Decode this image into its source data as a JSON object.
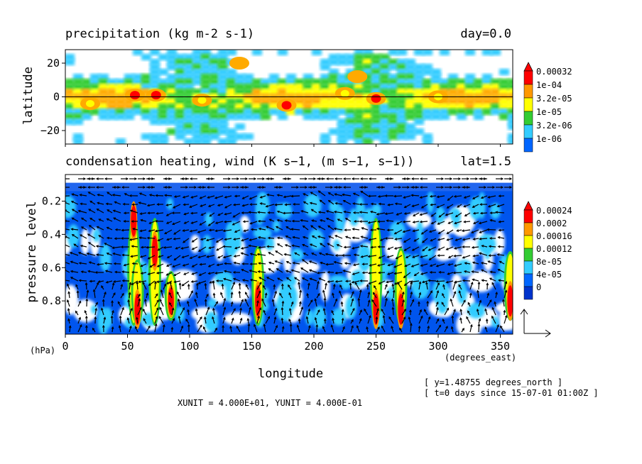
{
  "chart_data": [
    {
      "type": "heatmap",
      "title": "precipitation (kg m-2 s-1)",
      "title_right": "day=0.0",
      "ylabel": "latitude",
      "xlim": [
        0,
        360
      ],
      "ylim": [
        -28,
        28
      ],
      "yticks": [
        {
          "value": 20,
          "label": "20"
        },
        {
          "value": 0,
          "label": "0"
        },
        {
          "value": -20,
          "label": "−20"
        }
      ],
      "zero_line": true,
      "legend_labels": [
        "0.00032",
        "1e-04",
        "3.2e-05",
        "1e-05",
        "3.2e-06",
        "1e-06"
      ],
      "legend_colors": [
        "#ff0000",
        "#ff9900",
        "#ffff00",
        "#33cc33",
        "#33ccff",
        "#0066ff"
      ],
      "band_colors": [
        "#33ccff",
        "#33cc33",
        "#ffff00",
        "#ffaa00",
        "#ff0000"
      ],
      "hotspots": [
        {
          "lon": 56,
          "lat": 1,
          "level": 4
        },
        {
          "lon": 73,
          "lat": 1,
          "level": 4
        },
        {
          "lon": 178,
          "lat": -5,
          "level": 4
        },
        {
          "lon": 250,
          "lat": -1,
          "level": 4
        },
        {
          "lon": 20,
          "lat": -4,
          "level": 3
        },
        {
          "lon": 110,
          "lat": -2,
          "level": 3
        },
        {
          "lon": 225,
          "lat": 2,
          "level": 3
        },
        {
          "lon": 300,
          "lat": 0,
          "level": 3
        },
        {
          "lon": 235,
          "lat": 12,
          "level": 2
        },
        {
          "lon": 140,
          "lat": 20,
          "level": 2
        }
      ]
    },
    {
      "type": "heatmap",
      "title": "condensation heating, wind (K s−1, (m s−1, s−1))",
      "title_right": "lat=1.5",
      "ylabel": "pressure level",
      "yunit": "(hPa)",
      "xlabel": "longitude",
      "xunit": "(degrees_east)",
      "xlim": [
        0,
        360
      ],
      "ylim": [
        1.0,
        0.04
      ],
      "xticks": [
        0,
        50,
        100,
        150,
        200,
        250,
        300,
        350
      ],
      "yticks": [
        0.2,
        0.4,
        0.6,
        0.8
      ],
      "legend_labels": [
        "0.00024",
        "0.0002",
        "0.00016",
        "0.00012",
        "8e-05",
        "4e-05",
        "0"
      ],
      "legend_colors": [
        "#ff0000",
        "#ff9900",
        "#ffff00",
        "#33cc33",
        "#33ccff",
        "#0066ff",
        "#0033cc"
      ],
      "background_fill": "#0055ee",
      "columns": [
        {
          "lon": 55,
          "top": 0.28,
          "bottom": 0.95,
          "peak": 0.32
        },
        {
          "lon": 58,
          "top": 0.55,
          "bottom": 0.95,
          "peak": 0.85
        },
        {
          "lon": 72,
          "top": 0.3,
          "bottom": 0.95,
          "peak": 0.5
        },
        {
          "lon": 85,
          "top": 0.62,
          "bottom": 0.92,
          "peak": 0.8
        },
        {
          "lon": 155,
          "top": 0.47,
          "bottom": 0.95,
          "peak": 0.8
        },
        {
          "lon": 250,
          "top": 0.3,
          "bottom": 0.95,
          "peak": 0.85
        },
        {
          "lon": 270,
          "top": 0.48,
          "bottom": 0.95,
          "peak": 0.85
        },
        {
          "lon": 358,
          "top": 0.5,
          "bottom": 0.92,
          "peak": 0.8
        }
      ],
      "vector_scale": {
        "xunit": "4.000E+01",
        "yunit": "4.000E−01"
      }
    }
  ],
  "footer": {
    "unit_line": "XUNIT = 4.000E+01, YUNIT = 4.000E-01",
    "y_info": "[ y=1.48755 degrees_north ]",
    "t_info": "[ t=0 days since 15-07-01 01:00Z ]"
  }
}
